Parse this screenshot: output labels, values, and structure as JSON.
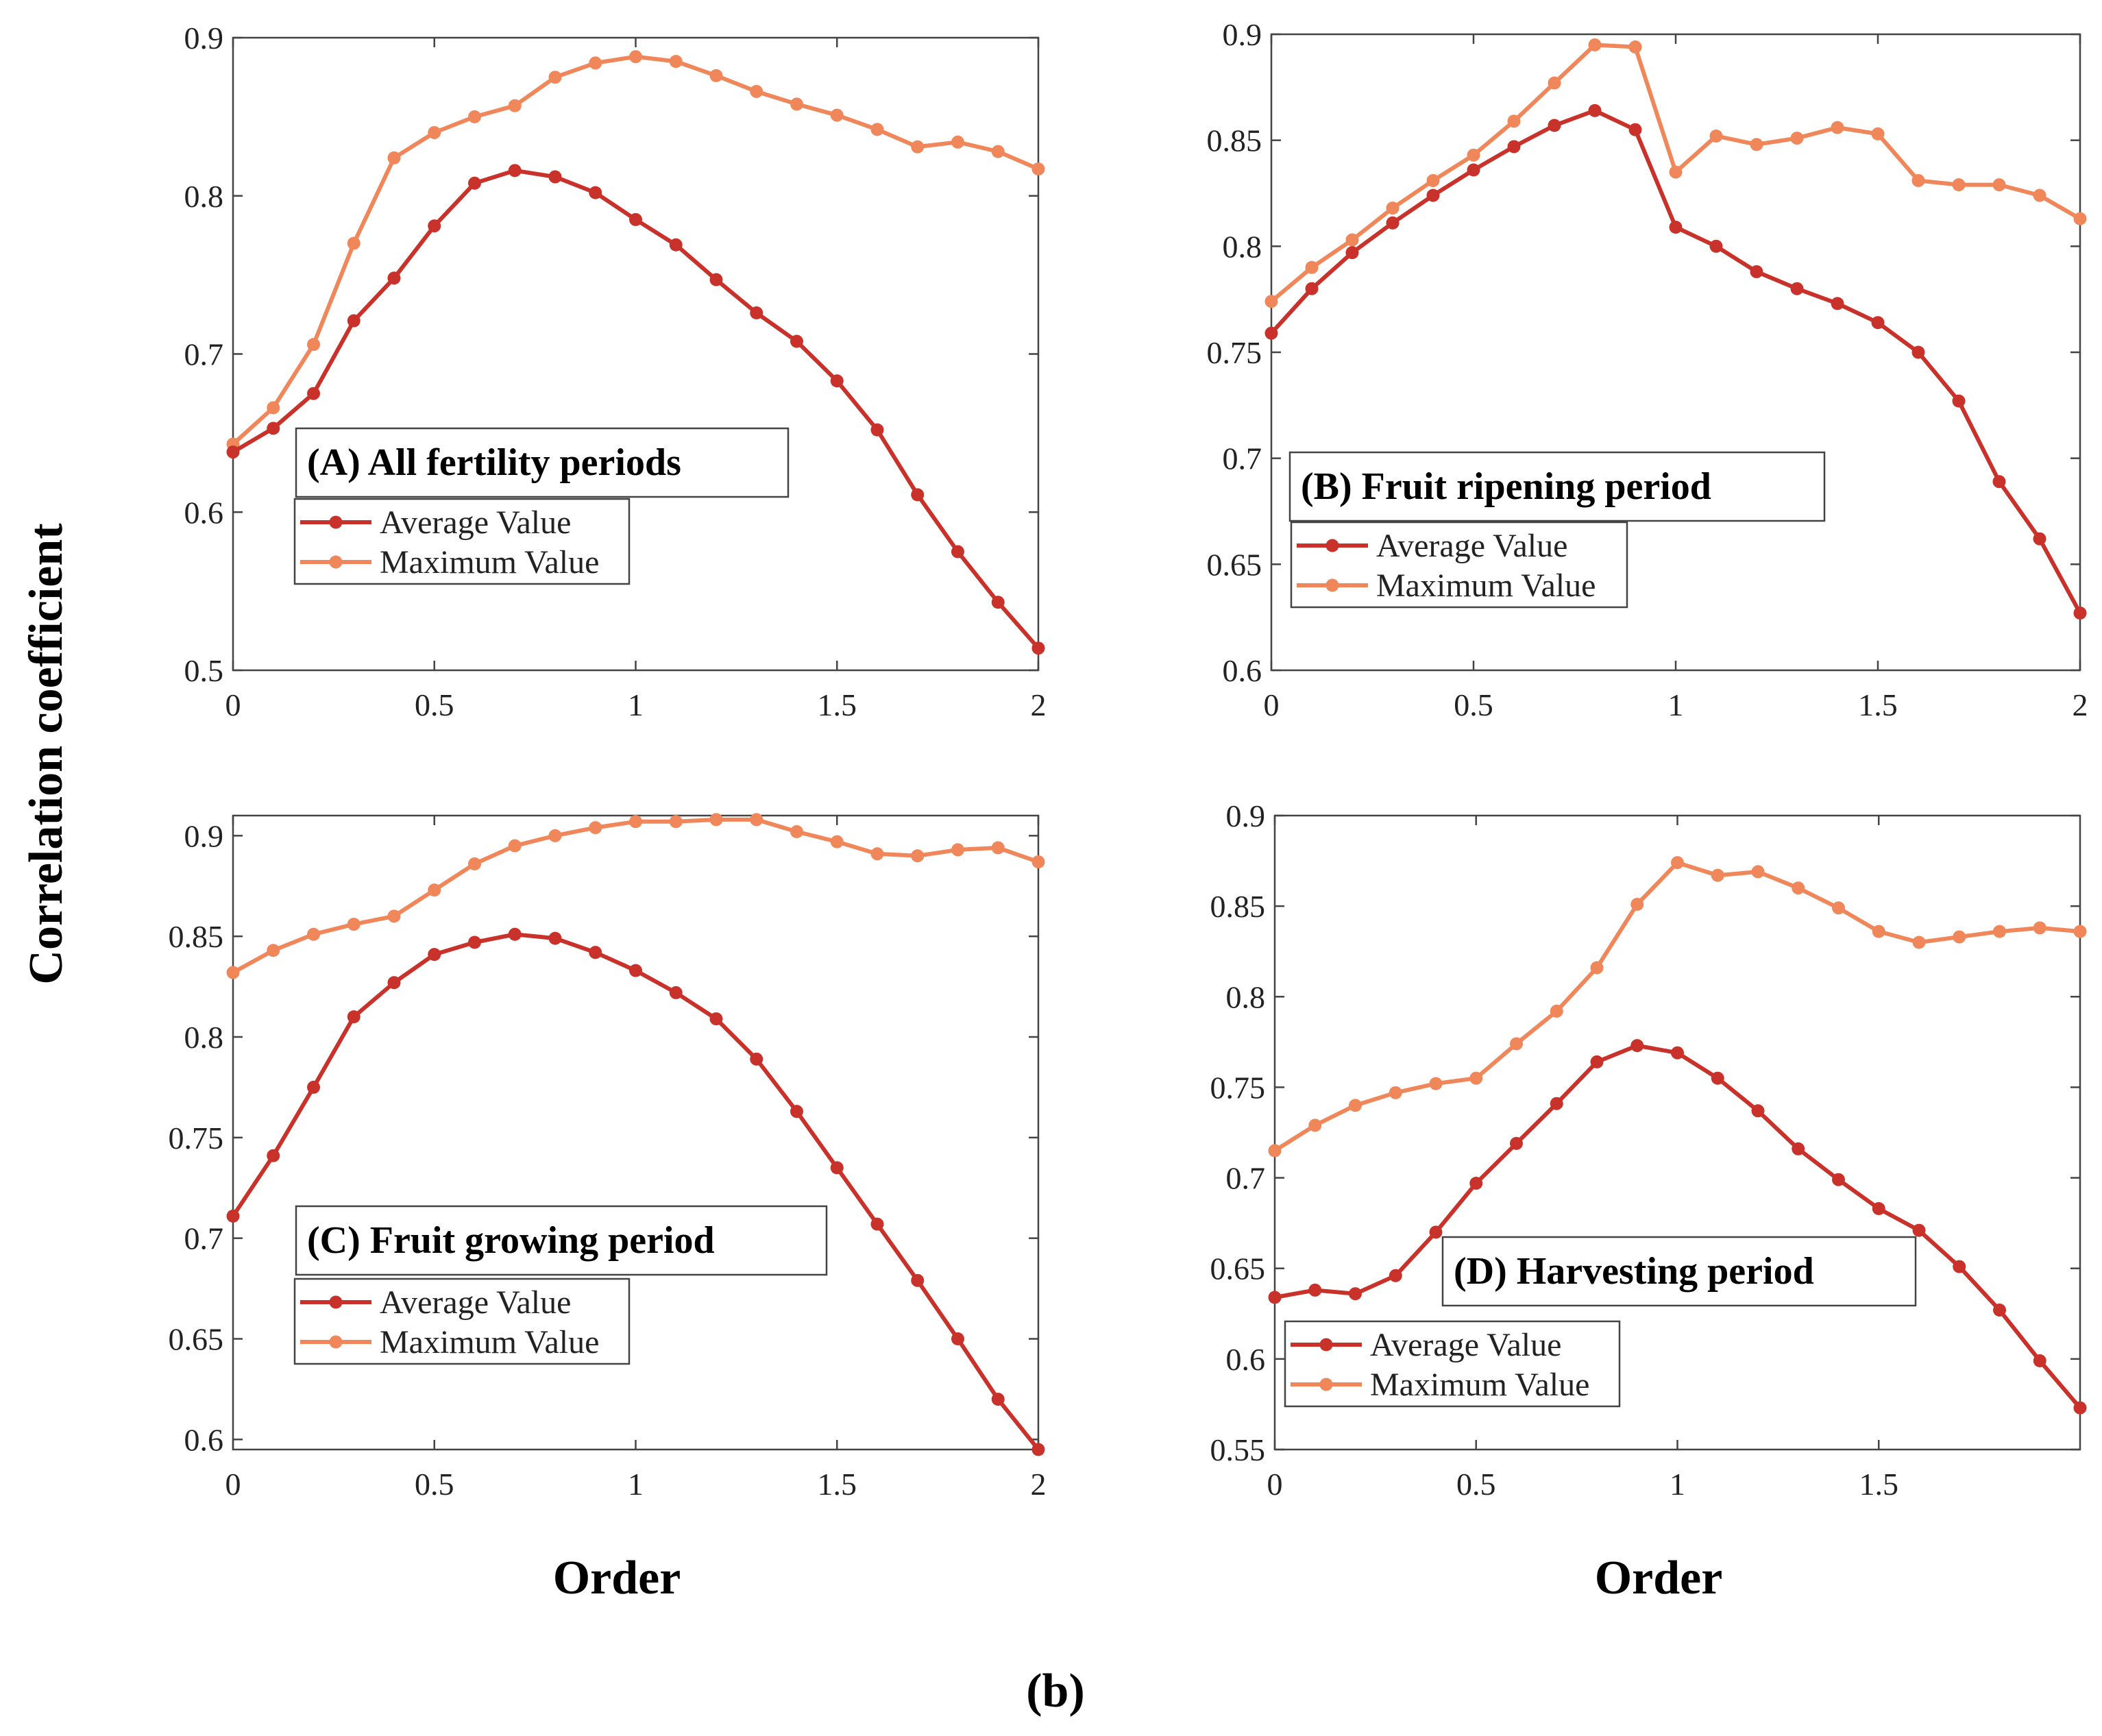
{
  "figure_label": "(b)",
  "y_title": "Correlation coefficient",
  "x_title": "Order",
  "chart_data": [
    {
      "type": "line",
      "title": "(A) All fertility periods",
      "xlabel": "Order",
      "ylabel": "Correlation coefficient",
      "xlim": [
        0,
        2
      ],
      "ylim": [
        0.5,
        0.9
      ],
      "xticks": [
        0,
        0.5,
        1,
        1.5,
        2
      ],
      "xtick_labels": [
        "0",
        "0.5",
        "1",
        "1.5",
        "2"
      ],
      "yticks": [
        0.5,
        0.6,
        0.7,
        0.8,
        0.9
      ],
      "ytick_labels": [
        "0.5",
        "0.6",
        "0.7",
        "0.8",
        "0.9"
      ],
      "x": [
        0,
        0.1,
        0.2,
        0.3,
        0.4,
        0.5,
        0.6,
        0.7,
        0.8,
        0.9,
        1.0,
        1.1,
        1.2,
        1.3,
        1.4,
        1.5,
        1.6,
        1.7,
        1.8,
        1.9,
        2.0
      ],
      "series": [
        {
          "name": "Average Value",
          "color": "#c8322a",
          "values": [
            0.638,
            0.653,
            0.675,
            0.721,
            0.748,
            0.781,
            0.808,
            0.816,
            0.812,
            0.802,
            0.785,
            0.769,
            0.747,
            0.726,
            0.708,
            0.683,
            0.652,
            0.611,
            0.575,
            0.543,
            0.514
          ]
        },
        {
          "name": "Maximum Value",
          "color": "#f0875a",
          "values": [
            0.643,
            0.666,
            0.706,
            0.77,
            0.824,
            0.84,
            0.85,
            0.857,
            0.875,
            0.884,
            0.888,
            0.885,
            0.876,
            0.866,
            0.858,
            0.851,
            0.842,
            0.831,
            0.834,
            0.828,
            0.817
          ]
        }
      ],
      "legend": "inside-left"
    },
    {
      "type": "line",
      "title": "(B) Fruit ripening period",
      "xlabel": "Order",
      "ylabel": "Correlation coefficient",
      "xlim": [
        0,
        2
      ],
      "ylim": [
        0.6,
        0.9
      ],
      "xticks": [
        0,
        0.5,
        1,
        1.5,
        2
      ],
      "xtick_labels": [
        "0",
        "0.5",
        "1",
        "1.5",
        "2"
      ],
      "yticks": [
        0.6,
        0.65,
        0.7,
        0.75,
        0.8,
        0.85,
        0.9
      ],
      "ytick_labels": [
        "0.6",
        "0.65",
        "0.7",
        "0.75",
        "0.8",
        "0.85",
        "0.9"
      ],
      "x": [
        0,
        0.1,
        0.2,
        0.3,
        0.4,
        0.5,
        0.6,
        0.7,
        0.8,
        0.9,
        1.0,
        1.1,
        1.2,
        1.3,
        1.4,
        1.5,
        1.6,
        1.7,
        1.8,
        1.9,
        2.0
      ],
      "series": [
        {
          "name": "Average Value",
          "color": "#c8322a",
          "values": [
            0.759,
            0.78,
            0.797,
            0.811,
            0.824,
            0.836,
            0.847,
            0.857,
            0.864,
            0.855,
            0.809,
            0.8,
            0.788,
            0.78,
            0.773,
            0.764,
            0.75,
            0.727,
            0.689,
            0.662,
            0.627
          ]
        },
        {
          "name": "Maximum Value",
          "color": "#f0875a",
          "values": [
            0.774,
            0.79,
            0.803,
            0.818,
            0.831,
            0.843,
            0.859,
            0.877,
            0.895,
            0.894,
            0.835,
            0.852,
            0.848,
            0.851,
            0.856,
            0.853,
            0.831,
            0.829,
            0.829,
            0.824,
            0.813
          ]
        }
      ],
      "legend": "inside-left"
    },
    {
      "type": "line",
      "title": "(C) Fruit growing period",
      "xlabel": "Order",
      "ylabel": "Correlation coefficient",
      "xlim": [
        0,
        2
      ],
      "ylim": [
        0.595,
        0.91
      ],
      "xticks": [
        0,
        0.5,
        1,
        1.5,
        2
      ],
      "xtick_labels": [
        "0",
        "0.5",
        "1",
        "1.5",
        "2"
      ],
      "yticks": [
        0.6,
        0.65,
        0.7,
        0.75,
        0.8,
        0.85,
        0.9
      ],
      "ytick_labels": [
        "0.6",
        "0.65",
        "0.7",
        "0.75",
        "0.8",
        "0.85",
        "0.9"
      ],
      "x": [
        0,
        0.1,
        0.2,
        0.3,
        0.4,
        0.5,
        0.6,
        0.7,
        0.8,
        0.9,
        1.0,
        1.1,
        1.2,
        1.3,
        1.4,
        1.5,
        1.6,
        1.7,
        1.8,
        1.9,
        2.0
      ],
      "series": [
        {
          "name": "Average Value",
          "color": "#c8322a",
          "values": [
            0.711,
            0.741,
            0.775,
            0.81,
            0.827,
            0.841,
            0.847,
            0.851,
            0.849,
            0.842,
            0.833,
            0.822,
            0.809,
            0.789,
            0.763,
            0.735,
            0.707,
            0.679,
            0.65,
            0.62,
            0.595
          ]
        },
        {
          "name": "Maximum Value",
          "color": "#f0875a",
          "values": [
            0.832,
            0.843,
            0.851,
            0.856,
            0.86,
            0.873,
            0.886,
            0.895,
            0.9,
            0.904,
            0.907,
            0.907,
            0.908,
            0.908,
            0.902,
            0.897,
            0.891,
            0.89,
            0.893,
            0.894,
            0.887
          ]
        }
      ],
      "legend": "inside-left"
    },
    {
      "type": "line",
      "title": "(D) Harvesting period",
      "xlabel": "Order",
      "ylabel": "Correlation coefficient",
      "xlim": [
        0,
        2
      ],
      "ylim": [
        0.55,
        0.9
      ],
      "xticks": [
        0,
        0.5,
        1,
        1.5
      ],
      "xtick_labels": [
        "0",
        "0.5",
        "1",
        "1.5"
      ],
      "yticks": [
        0.55,
        0.6,
        0.65,
        0.7,
        0.75,
        0.8,
        0.85,
        0.9
      ],
      "ytick_labels": [
        "0.55",
        "0.6",
        "0.65",
        "0.7",
        "0.75",
        "0.8",
        "0.85",
        "0.9"
      ],
      "x": [
        0,
        0.1,
        0.2,
        0.3,
        0.4,
        0.5,
        0.6,
        0.7,
        0.8,
        0.9,
        1.0,
        1.1,
        1.2,
        1.3,
        1.4,
        1.5,
        1.6,
        1.7,
        1.8,
        1.9,
        2.0
      ],
      "series": [
        {
          "name": "Average Value",
          "color": "#c8322a",
          "values": [
            0.634,
            0.638,
            0.636,
            0.646,
            0.67,
            0.697,
            0.719,
            0.741,
            0.764,
            0.773,
            0.769,
            0.755,
            0.737,
            0.716,
            0.699,
            0.683,
            0.671,
            0.651,
            0.627,
            0.599,
            0.573
          ]
        },
        {
          "name": "Maximum Value",
          "color": "#f0875a",
          "values": [
            0.715,
            0.729,
            0.74,
            0.747,
            0.752,
            0.755,
            0.774,
            0.792,
            0.816,
            0.851,
            0.874,
            0.867,
            0.869,
            0.86,
            0.849,
            0.836,
            0.83,
            0.833,
            0.836,
            0.838,
            0.836
          ]
        }
      ],
      "legend": "inside-left"
    }
  ]
}
